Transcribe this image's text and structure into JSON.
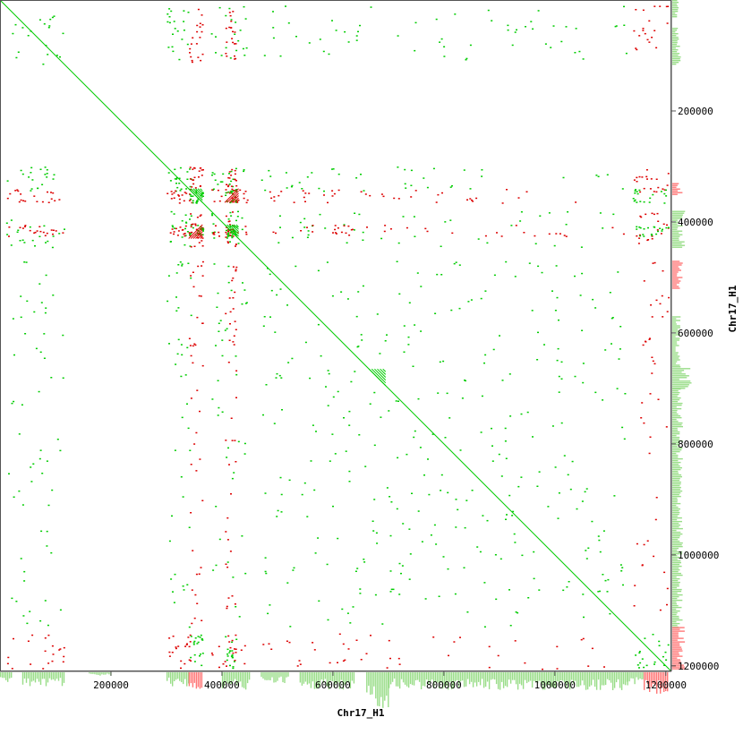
{
  "chart_data": {
    "type": "scatter",
    "subtype": "dot-plot",
    "xlabel": "Chr17_H1",
    "ylabel": "Chr17_H1",
    "xlim": [
      0,
      1210000
    ],
    "ylim": [
      0,
      1210000
    ],
    "x_ticks": [
      {
        "value": 200000,
        "label": "200000"
      },
      {
        "value": 400000,
        "label": "400000"
      },
      {
        "value": 600000,
        "label": "600000"
      },
      {
        "value": 800000,
        "label": "800000"
      },
      {
        "value": 1000000,
        "label": "1000000"
      },
      {
        "value": 1200000,
        "label": "1200000"
      }
    ],
    "y_ticks": [
      {
        "value": 200000,
        "label": "200000"
      },
      {
        "value": 400000,
        "label": "400000"
      },
      {
        "value": 600000,
        "label": "600000"
      },
      {
        "value": 800000,
        "label": "800000"
      },
      {
        "value": 1000000,
        "label": "1000000"
      },
      {
        "value": 1200000,
        "label": "1200000"
      }
    ],
    "colors": {
      "forward": "#00cc00",
      "reverse": "#dd0000",
      "coverage_forward": "#99dd88",
      "coverage_reverse": "#ff7777",
      "frame": "#555555"
    },
    "series": [
      {
        "name": "forward",
        "color": "#00cc00"
      },
      {
        "name": "reverse",
        "color": "#dd0000"
      }
    ],
    "main_diagonal": {
      "start": [
        0,
        0
      ],
      "end": [
        1210000,
        1210000
      ],
      "series": "forward"
    },
    "repeat_regions_forward": [
      {
        "start": 10000,
        "end": 115000
      },
      {
        "start": 300000,
        "end": 345000
      },
      {
        "start": 380000,
        "end": 445000
      },
      {
        "start": 470000,
        "end": 660000
      },
      {
        "start": 665000,
        "end": 1130000
      }
    ],
    "repeat_regions_reverse": [
      {
        "start": 340000,
        "end": 365000
      },
      {
        "start": 405000,
        "end": 425000
      },
      {
        "start": 1140000,
        "end": 1205000
      }
    ],
    "block_clusters": [
      {
        "x": [
          340000,
          365000
        ],
        "y": [
          340000,
          365000
        ],
        "series": "forward"
      },
      {
        "x": [
          405000,
          430000
        ],
        "y": [
          405000,
          430000
        ],
        "series": "forward"
      },
      {
        "x": [
          405000,
          430000
        ],
        "y": [
          340000,
          365000
        ],
        "series": "reverse"
      },
      {
        "x": [
          340000,
          365000
        ],
        "y": [
          405000,
          430000
        ],
        "series": "reverse"
      },
      {
        "x": [
          665000,
          695000
        ],
        "y": [
          665000,
          695000
        ],
        "series": "forward"
      }
    ],
    "coverage_tracks": {
      "x_axis_position": "bottom",
      "y_axis_position": "right",
      "x_profile": [
        {
          "start": 0,
          "end": 20000,
          "value": 0.3,
          "series": "forward"
        },
        {
          "start": 40000,
          "end": 115000,
          "value": 0.4,
          "series": "forward"
        },
        {
          "start": 160000,
          "end": 200000,
          "value": 0.1,
          "series": "forward"
        },
        {
          "start": 300000,
          "end": 340000,
          "value": 0.4,
          "series": "forward"
        },
        {
          "start": 340000,
          "end": 365000,
          "value": 0.5,
          "series": "reverse"
        },
        {
          "start": 400000,
          "end": 450000,
          "value": 0.5,
          "series": "forward"
        },
        {
          "start": 470000,
          "end": 520000,
          "value": 0.3,
          "series": "forward"
        },
        {
          "start": 540000,
          "end": 640000,
          "value": 0.5,
          "series": "forward"
        },
        {
          "start": 660000,
          "end": 700000,
          "value": 1.0,
          "series": "forward"
        },
        {
          "start": 700000,
          "end": 1130000,
          "value": 0.5,
          "series": "forward"
        },
        {
          "start": 1130000,
          "end": 1160000,
          "value": 0.4,
          "series": "forward"
        },
        {
          "start": 1160000,
          "end": 1205000,
          "value": 0.6,
          "series": "reverse"
        }
      ],
      "y_profile": [
        {
          "start": 0,
          "end": 30000,
          "value": 0.3,
          "series": "forward"
        },
        {
          "start": 50000,
          "end": 115000,
          "value": 0.4,
          "series": "forward"
        },
        {
          "start": 330000,
          "end": 350000,
          "value": 0.5,
          "series": "reverse"
        },
        {
          "start": 380000,
          "end": 445000,
          "value": 0.6,
          "series": "forward"
        },
        {
          "start": 470000,
          "end": 520000,
          "value": 0.5,
          "series": "reverse"
        },
        {
          "start": 570000,
          "end": 660000,
          "value": 0.4,
          "series": "forward"
        },
        {
          "start": 660000,
          "end": 700000,
          "value": 0.9,
          "series": "forward"
        },
        {
          "start": 700000,
          "end": 1130000,
          "value": 0.5,
          "series": "forward"
        },
        {
          "start": 1130000,
          "end": 1205000,
          "value": 0.6,
          "series": "reverse"
        }
      ]
    },
    "grid": false,
    "legend": "none"
  }
}
